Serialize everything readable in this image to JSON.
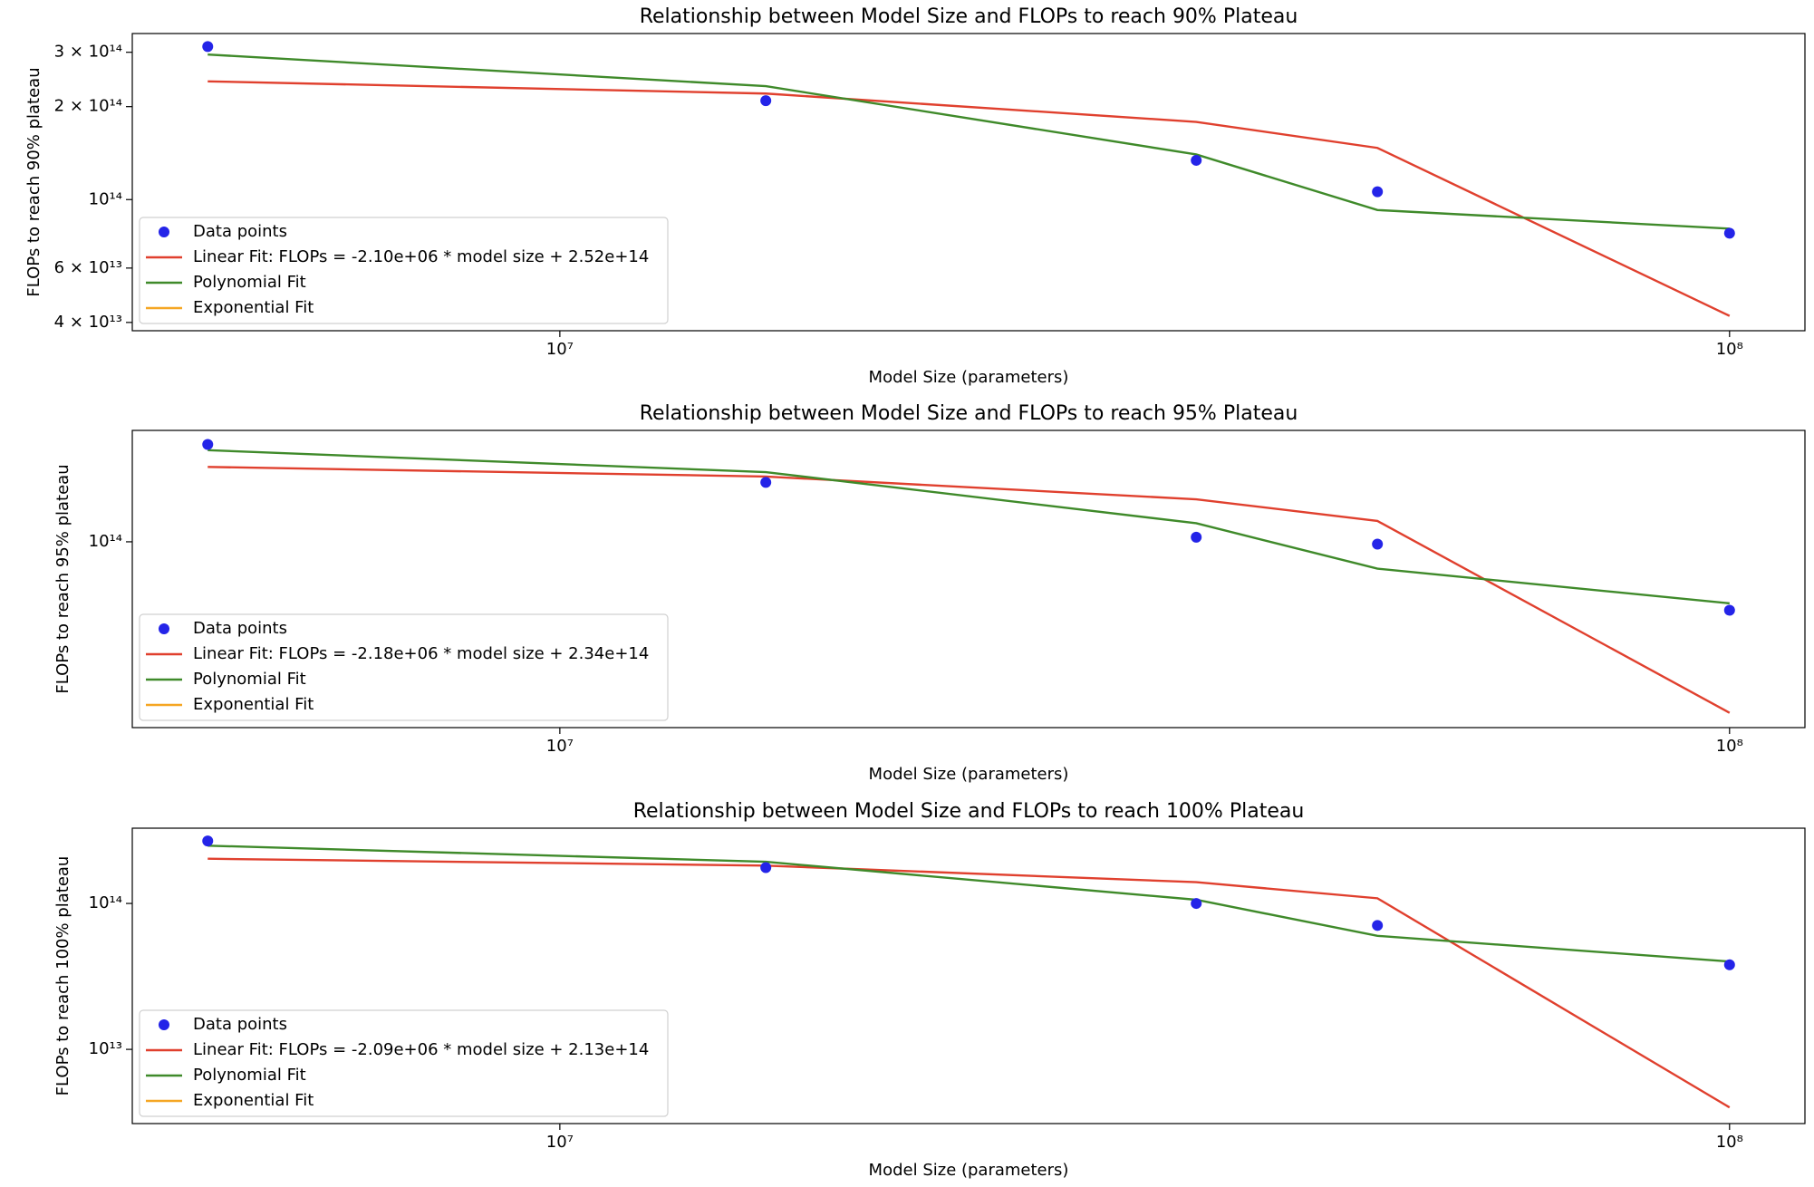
{
  "chart_data": [
    {
      "type": "line",
      "title": "Relationship between Model Size and FLOPs to reach 90% Plateau",
      "xlabel": "Model Size (parameters)",
      "ylabel": "FLOPs to reach 90% plateau",
      "xscale": "log",
      "yscale": "log",
      "legend": "lower left",
      "x": [
        5000000,
        15000000,
        35000000,
        50000000,
        100000000
      ],
      "xlim": [
        4310000,
        116000000
      ],
      "xticks": [
        {
          "value": 10000000,
          "label": "10⁷"
        },
        {
          "value": 100000000,
          "label": "10⁸"
        }
      ],
      "ylim": [
        37600000000000,
        345000000000000
      ],
      "yticks": [
        {
          "value": 40000000000000,
          "label": "4 × 10¹³"
        },
        {
          "value": 60000000000000,
          "label": "6 × 10¹³"
        },
        {
          "value": 100000000000000,
          "label": "10¹⁴"
        },
        {
          "value": 200000000000000,
          "label": "2 × 10¹⁴"
        },
        {
          "value": 300000000000000,
          "label": "3 × 10¹⁴"
        }
      ],
      "series": [
        {
          "name": "Data points",
          "mode": "markers",
          "color": "#2424e8",
          "values": [
            313000000000000,
            209000000000000,
            134000000000000,
            106000000000000,
            77800000000000
          ]
        },
        {
          "name": "Linear Fit: FLOPs = -2.10e+06 * model size + 2.52e+14",
          "mode": "lines",
          "color": "#e0402e",
          "values": [
            241500000000000,
            220500000000000,
            178500000000000,
            147000000000000,
            42000000000000
          ]
        },
        {
          "name": "Polynomial Fit",
          "mode": "lines",
          "color": "#3f8a2a",
          "values": [
            295000000000000,
            233000000000000,
            140000000000000,
            92500000000000,
            80500000000000
          ]
        },
        {
          "name": "Exponential Fit",
          "mode": "lines",
          "color": "#f5a623",
          "values": [
            null,
            null,
            null,
            null,
            null
          ]
        }
      ]
    },
    {
      "type": "line",
      "title": "Relationship between Model Size and FLOPs to reach 95% Plateau",
      "xlabel": "Model Size (parameters)",
      "ylabel": "FLOPs to reach 95% plateau",
      "xscale": "log",
      "yscale": "log",
      "legend": "lower left",
      "x": [
        5000000,
        15000000,
        35000000,
        50000000,
        100000000
      ],
      "xlim": [
        4310000,
        116000000
      ],
      "xticks": [
        {
          "value": 10000000,
          "label": "10⁷"
        },
        {
          "value": 100000000,
          "label": "10⁸"
        }
      ],
      "ylim": [
        13650000000000,
        330000000000000
      ],
      "yticks": [
        {
          "value": 100000000000000,
          "label": "10¹⁴"
        }
      ],
      "series": [
        {
          "name": "Data points",
          "mode": "markers",
          "color": "#2424e8",
          "values": [
            284000000000000,
            189000000000000,
            105000000000000,
            97500000000000,
            48000000000000
          ]
        },
        {
          "name": "Linear Fit: FLOPs = -2.18e+06 * model size + 2.34e+14",
          "mode": "lines",
          "color": "#e0402e",
          "values": [
            223100000000000,
            201300000000000,
            157700000000000,
            125000000000000,
            16000000000000
          ]
        },
        {
          "name": "Polynomial Fit",
          "mode": "lines",
          "color": "#3f8a2a",
          "values": [
            267000000000000,
            211000000000000,
            122000000000000,
            75000000000000,
            51700000000000
          ]
        },
        {
          "name": "Exponential Fit",
          "mode": "lines",
          "color": "#f5a623",
          "values": [
            null,
            null,
            null,
            null,
            null
          ]
        }
      ]
    },
    {
      "type": "line",
      "title": "Relationship between Model Size and FLOPs to reach 100% Plateau",
      "xlabel": "Model Size (parameters)",
      "ylabel": "FLOPs to reach 100% plateau",
      "xscale": "log",
      "yscale": "log",
      "legend": "lower left",
      "x": [
        5000000,
        15000000,
        35000000,
        50000000,
        100000000
      ],
      "xlim": [
        4310000,
        116000000
      ],
      "xticks": [
        {
          "value": 10000000,
          "label": "10⁷"
        },
        {
          "value": 100000000,
          "label": "10⁸"
        }
      ],
      "ylim": [
        3100000000000,
        328000000000000
      ],
      "yticks": [
        {
          "value": 10000000000000,
          "label": "10¹³"
        },
        {
          "value": 100000000000000,
          "label": "10¹⁴"
        }
      ],
      "series": [
        {
          "name": "Data points",
          "mode": "markers",
          "color": "#2424e8",
          "values": [
            268000000000000,
            176000000000000,
            100000000000000,
            70700000000000,
            38000000000000
          ]
        },
        {
          "name": "Linear Fit: FLOPs = -2.09e+06 * model size + 2.13e+14",
          "mode": "lines",
          "color": "#e0402e",
          "values": [
            202500000000000,
            181700000000000,
            139900000000000,
            108500000000000,
            4000000000000
          ]
        },
        {
          "name": "Polynomial Fit",
          "mode": "lines",
          "color": "#3f8a2a",
          "values": [
            249000000000000,
            193000000000000,
            106000000000000,
            60000000000000,
            40000000000000
          ]
        },
        {
          "name": "Exponential Fit",
          "mode": "lines",
          "color": "#f5a623",
          "values": [
            null,
            null,
            null,
            null,
            null
          ]
        }
      ]
    }
  ]
}
